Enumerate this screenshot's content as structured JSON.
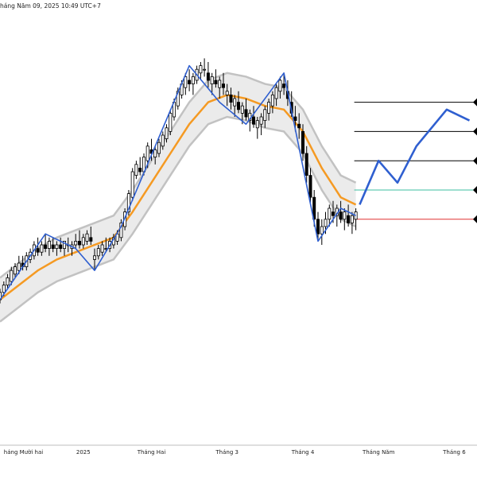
{
  "header": {
    "timestamp": "háng Năm 09, 2025 10:49 UTC+7"
  },
  "chart_data": {
    "type": "candlestick",
    "x_labels": [
      {
        "label": "háng Mười hai",
        "x": 1
      },
      {
        "label": "2025",
        "x": 22
      },
      {
        "label": "Tháng Hai",
        "x": 40
      },
      {
        "label": "Tháng 3",
        "x": 60
      },
      {
        "label": "Tháng 4",
        "x": 80
      },
      {
        "label": "Tháng Năm",
        "x": 100
      },
      {
        "label": "Tháng 6",
        "x": 120
      }
    ],
    "xlim": [
      0,
      126
    ],
    "ylim": [
      0,
      100
    ],
    "candles": [
      [
        0,
        30,
        33,
        29,
        32
      ],
      [
        1,
        32,
        35,
        31,
        34
      ],
      [
        2,
        34,
        37,
        33,
        36
      ],
      [
        3,
        35,
        39,
        34,
        38
      ],
      [
        4,
        37,
        40,
        36,
        39
      ],
      [
        5,
        38,
        42,
        37,
        40
      ],
      [
        6,
        40,
        42,
        38,
        39
      ],
      [
        7,
        39,
        43,
        38,
        42
      ],
      [
        8,
        41,
        44,
        40,
        43
      ],
      [
        9,
        42,
        46,
        41,
        45
      ],
      [
        10,
        44,
        47,
        42,
        43
      ],
      [
        11,
        43,
        46,
        42,
        45
      ],
      [
        12,
        45,
        48,
        43,
        44
      ],
      [
        13,
        44,
        47,
        42,
        46
      ],
      [
        14,
        45,
        47,
        43,
        44
      ],
      [
        15,
        44,
        46,
        42,
        45
      ],
      [
        16,
        45,
        47,
        43,
        44
      ],
      [
        17,
        44,
        46,
        42,
        46
      ],
      [
        18,
        45,
        47,
        43,
        45
      ],
      [
        19,
        44,
        46,
        42,
        45
      ],
      [
        20,
        45,
        48,
        44,
        46
      ],
      [
        21,
        46,
        49,
        44,
        45
      ],
      [
        22,
        45,
        48,
        44,
        47
      ],
      [
        23,
        46,
        49,
        45,
        48
      ],
      [
        24,
        47,
        50,
        45,
        46
      ],
      [
        25,
        41,
        44,
        38,
        42
      ],
      [
        26,
        42,
        45,
        41,
        44
      ],
      [
        27,
        43,
        46,
        42,
        45
      ],
      [
        28,
        44,
        47,
        43,
        44
      ],
      [
        29,
        44,
        47,
        43,
        46
      ],
      [
        30,
        45,
        48,
        44,
        47
      ],
      [
        31,
        46,
        49,
        45,
        48
      ],
      [
        32,
        47,
        52,
        46,
        51
      ],
      [
        33,
        50,
        55,
        49,
        54
      ],
      [
        34,
        54,
        60,
        53,
        59
      ],
      [
        35,
        58,
        66,
        57,
        65
      ],
      [
        36,
        64,
        68,
        63,
        67
      ],
      [
        37,
        66,
        69,
        64,
        65
      ],
      [
        38,
        65,
        70,
        64,
        69
      ],
      [
        39,
        68,
        73,
        66,
        72
      ],
      [
        40,
        71,
        74,
        68,
        70
      ],
      [
        41,
        69,
        72,
        67,
        71
      ],
      [
        42,
        70,
        74,
        69,
        73
      ],
      [
        43,
        72,
        76,
        71,
        75
      ],
      [
        44,
        74,
        78,
        73,
        77
      ],
      [
        45,
        76,
        82,
        75,
        81
      ],
      [
        46,
        80,
        85,
        79,
        84
      ],
      [
        47,
        83,
        88,
        82,
        87
      ],
      [
        48,
        86,
        90,
        85,
        89
      ],
      [
        49,
        88,
        92,
        86,
        91
      ],
      [
        50,
        90,
        93,
        87,
        89
      ],
      [
        51,
        89,
        92,
        86,
        91
      ],
      [
        52,
        90,
        94,
        89,
        93
      ],
      [
        53,
        92,
        95,
        90,
        94
      ],
      [
        54,
        93,
        96,
        91,
        93
      ],
      [
        55,
        92,
        95,
        88,
        90
      ],
      [
        56,
        89,
        92,
        86,
        91
      ],
      [
        57,
        90,
        93,
        88,
        89
      ],
      [
        58,
        88,
        91,
        85,
        90
      ],
      [
        59,
        89,
        92,
        86,
        88
      ],
      [
        60,
        86,
        89,
        83,
        87
      ],
      [
        61,
        86,
        88,
        82,
        84
      ],
      [
        62,
        83,
        86,
        80,
        85
      ],
      [
        63,
        84,
        87,
        81,
        82
      ],
      [
        64,
        81,
        84,
        78,
        83
      ],
      [
        65,
        82,
        85,
        79,
        80
      ],
      [
        66,
        79,
        82,
        76,
        81
      ],
      [
        67,
        80,
        83,
        77,
        78
      ],
      [
        68,
        77,
        80,
        74,
        79
      ],
      [
        69,
        78,
        81,
        75,
        80
      ],
      [
        70,
        79,
        83,
        77,
        82
      ],
      [
        71,
        81,
        85,
        79,
        84
      ],
      [
        72,
        83,
        87,
        81,
        86
      ],
      [
        73,
        85,
        89,
        83,
        88
      ],
      [
        74,
        87,
        91,
        85,
        90
      ],
      [
        75,
        89,
        92,
        86,
        88
      ],
      [
        76,
        87,
        90,
        83,
        85
      ],
      [
        77,
        84,
        87,
        80,
        81
      ],
      [
        78,
        80,
        83,
        76,
        79
      ],
      [
        79,
        78,
        81,
        74,
        77
      ],
      [
        80,
        76,
        78,
        68,
        70
      ],
      [
        81,
        70,
        72,
        62,
        64
      ],
      [
        82,
        64,
        66,
        56,
        58
      ],
      [
        83,
        58,
        60,
        50,
        52
      ],
      [
        84,
        52,
        54,
        46,
        48
      ],
      [
        85,
        48,
        52,
        45,
        50
      ],
      [
        86,
        50,
        54,
        48,
        52
      ],
      [
        87,
        52,
        56,
        50,
        55
      ],
      [
        88,
        54,
        57,
        51,
        53
      ],
      [
        89,
        53,
        56,
        50,
        55
      ],
      [
        90,
        54,
        57,
        51,
        52
      ],
      [
        91,
        52,
        55,
        49,
        54
      ],
      [
        92,
        53,
        56,
        50,
        51
      ],
      [
        93,
        51,
        54,
        48,
        53
      ],
      [
        94,
        52,
        55,
        49,
        54
      ]
    ],
    "sma": [
      [
        0,
        30
      ],
      [
        5,
        34
      ],
      [
        10,
        38
      ],
      [
        15,
        41
      ],
      [
        20,
        43
      ],
      [
        25,
        45
      ],
      [
        30,
        47
      ],
      [
        35,
        54
      ],
      [
        40,
        62
      ],
      [
        45,
        70
      ],
      [
        50,
        78
      ],
      [
        55,
        84
      ],
      [
        60,
        86
      ],
      [
        65,
        85
      ],
      [
        70,
        83
      ],
      [
        75,
        82
      ],
      [
        80,
        76
      ],
      [
        85,
        66
      ],
      [
        90,
        58
      ],
      [
        94,
        56
      ]
    ],
    "band_upper": [
      [
        0,
        36
      ],
      [
        5,
        40
      ],
      [
        10,
        44
      ],
      [
        15,
        47
      ],
      [
        20,
        49
      ],
      [
        25,
        51
      ],
      [
        30,
        53
      ],
      [
        35,
        60
      ],
      [
        40,
        68
      ],
      [
        45,
        76
      ],
      [
        50,
        84
      ],
      [
        55,
        90
      ],
      [
        60,
        92
      ],
      [
        65,
        91
      ],
      [
        70,
        89
      ],
      [
        75,
        88
      ],
      [
        80,
        82
      ],
      [
        85,
        72
      ],
      [
        90,
        64
      ],
      [
        94,
        62
      ]
    ],
    "band_lower": [
      [
        0,
        24
      ],
      [
        5,
        28
      ],
      [
        10,
        32
      ],
      [
        15,
        35
      ],
      [
        20,
        37
      ],
      [
        25,
        39
      ],
      [
        30,
        41
      ],
      [
        35,
        48
      ],
      [
        40,
        56
      ],
      [
        45,
        64
      ],
      [
        50,
        72
      ],
      [
        55,
        78
      ],
      [
        60,
        80
      ],
      [
        65,
        79
      ],
      [
        70,
        77
      ],
      [
        75,
        76
      ],
      [
        80,
        70
      ],
      [
        85,
        60
      ],
      [
        90,
        52
      ],
      [
        94,
        50
      ]
    ],
    "zigzag": [
      [
        0,
        30
      ],
      [
        12,
        48
      ],
      [
        20,
        44
      ],
      [
        25,
        38
      ],
      [
        32,
        50
      ],
      [
        50,
        94
      ],
      [
        58,
        84
      ],
      [
        65,
        78
      ],
      [
        75,
        92
      ],
      [
        84,
        46
      ],
      [
        90,
        55
      ],
      [
        94,
        53
      ]
    ],
    "projection": [
      [
        95,
        56
      ],
      [
        100,
        68
      ],
      [
        105,
        62
      ],
      [
        110,
        72
      ],
      [
        118,
        82
      ],
      [
        124,
        79
      ]
    ],
    "levels": [
      {
        "y": 84,
        "color": "#000000"
      },
      {
        "y": 76,
        "color": "#000000"
      },
      {
        "y": 68,
        "color": "#000000"
      },
      {
        "y": 60,
        "color": "#3cbfa0"
      },
      {
        "y": 52,
        "color": "#e03030"
      }
    ],
    "colors": {
      "candle_up": "#ffffff",
      "candle_down": "#000000",
      "wick": "#000000",
      "sma": "#f59a23",
      "band_fill": "#ebebeb",
      "band_edge": "#c2c2c2",
      "zigzag": "#2f5fd0",
      "projection": "#2f5fd0"
    }
  }
}
